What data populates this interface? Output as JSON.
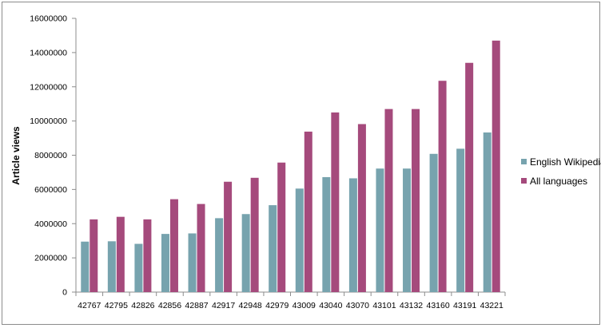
{
  "chart_data": {
    "type": "bar",
    "ylabel": "Article views",
    "xlabel": "",
    "ylim": [
      0,
      16000000
    ],
    "yticks": [
      0,
      2000000,
      4000000,
      6000000,
      8000000,
      10000000,
      12000000,
      14000000,
      16000000
    ],
    "ytick_labels": [
      "0",
      "2000000",
      "4000000",
      "6000000",
      "8000000",
      "10000000",
      "12000000",
      "14000000",
      "16000000"
    ],
    "grid": false,
    "legend": "right",
    "categories": [
      "42767",
      "42795",
      "42826",
      "42856",
      "42887",
      "42917",
      "42948",
      "42979",
      "43009",
      "43040",
      "43070",
      "43101",
      "43132",
      "43160",
      "43191",
      "43221"
    ],
    "series": [
      {
        "name": "English Wikipedia",
        "color": "#77a3ae",
        "values": [
          2950000,
          2970000,
          2820000,
          3400000,
          3430000,
          4320000,
          4560000,
          5080000,
          6050000,
          6720000,
          6650000,
          7220000,
          7220000,
          8080000,
          8380000,
          9330000
        ]
      },
      {
        "name": "All languages",
        "color": "#a54a7c",
        "values": [
          4250000,
          4400000,
          4250000,
          5430000,
          5150000,
          6450000,
          6680000,
          7570000,
          9380000,
          10500000,
          9820000,
          10700000,
          10700000,
          12350000,
          13400000,
          14700000
        ]
      }
    ]
  }
}
